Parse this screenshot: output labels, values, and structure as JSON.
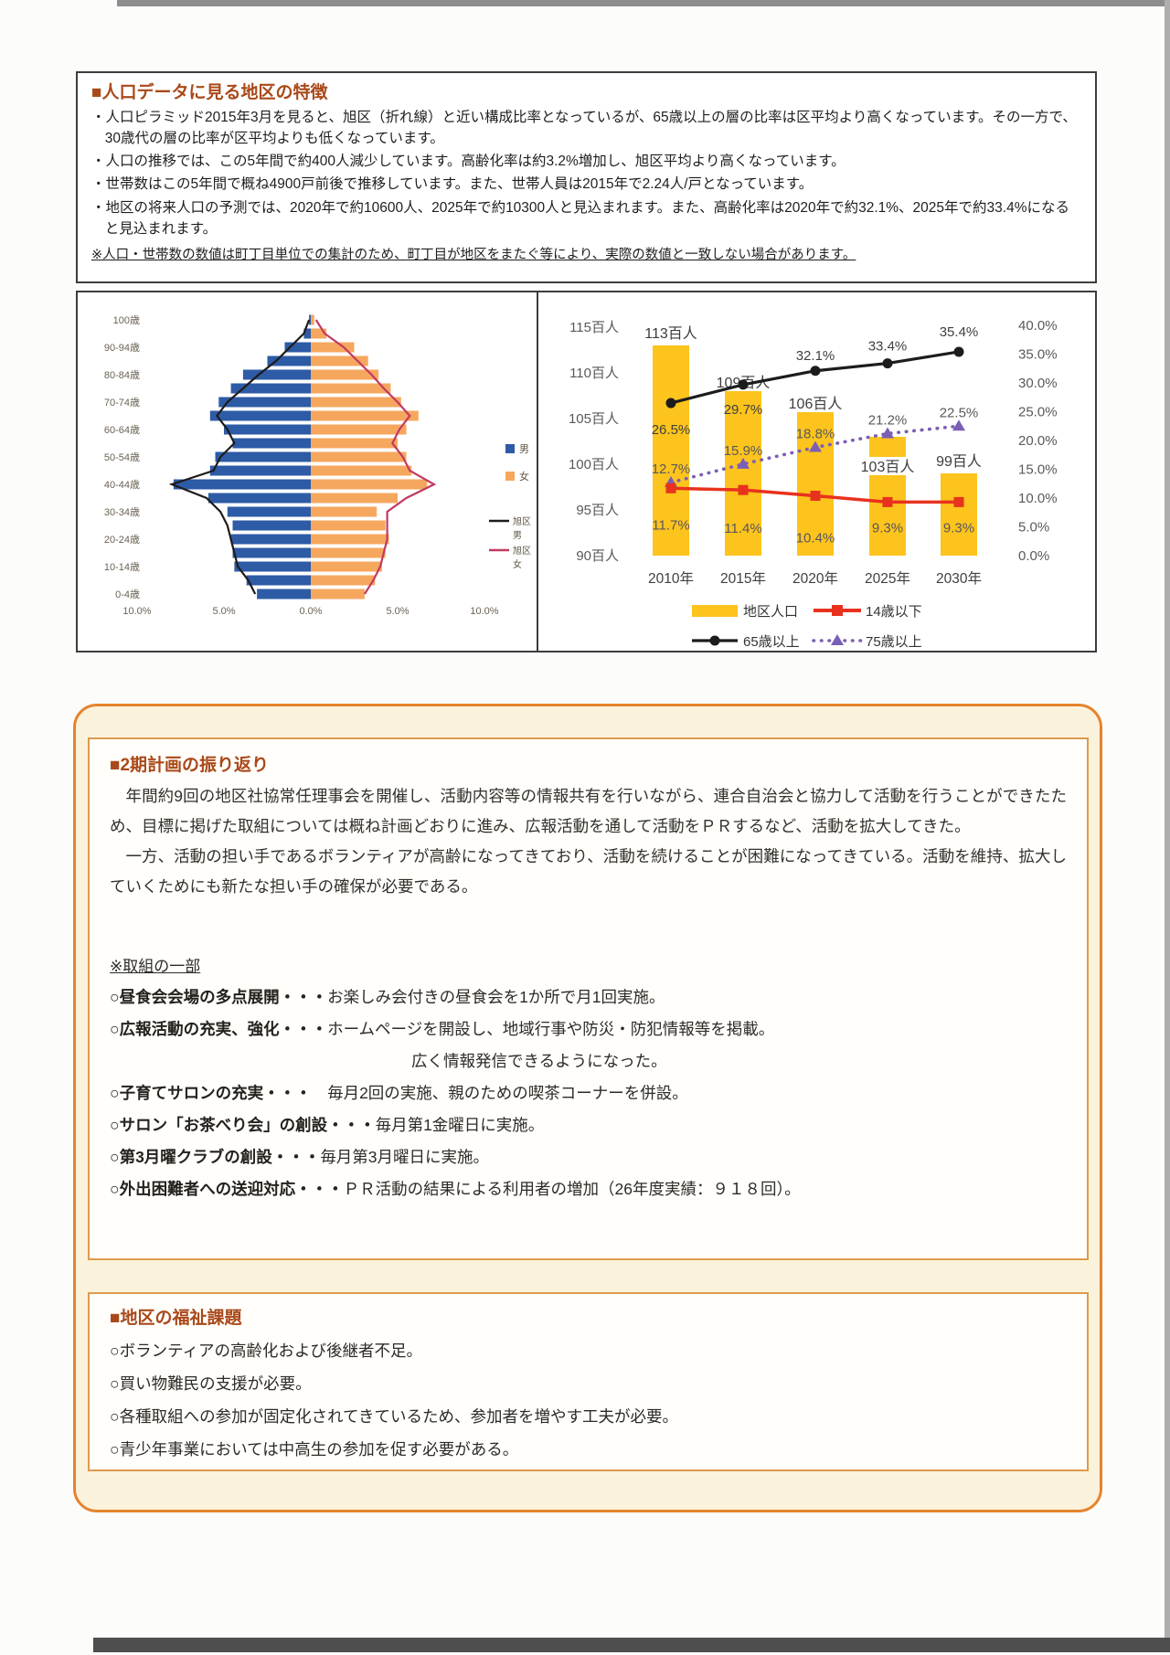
{
  "section1": {
    "title": "■人口データに見る地区の特徴",
    "bullets": [
      "・人口ピラミッド2015年3月を見ると、旭区（折れ線）と近い構成比率となっているが、65歳以上の層の比率は区平均より高くなっています。その一方で、30歳代の層の比率が区平均よりも低くなっています。",
      "・人口の推移では、この5年間で約400人減少しています。高齢化率は約3.2%増加し、旭区平均より高くなっています。",
      "・世帯数はこの5年間で概ね4900戸前後で推移しています。また、世帯人員は2015年で2.24人/戸となっています。",
      "・地区の将来人口の予測では、2020年で約10600人、2025年で約10300人と見込まれます。また、高齢化率は2020年で約32.1%、2025年で約33.4%になると見込まれます。"
    ],
    "note": "※人口・世帯数の数値は町丁目単位での集計のため、町丁目が地区をまたぐ等により、実際の数値と一致しない場合があります。"
  },
  "chart_data": [
    {
      "id": "population_pyramid",
      "type": "bar",
      "subtype": "population-pyramid",
      "unit": "% (構成比・目測値)",
      "age_groups": [
        "100歳~",
        "95-99歳",
        "90-94歳",
        "85-89歳",
        "80-84歳",
        "75-79歳",
        "70-74歳",
        "65-69歳",
        "60-64歳",
        "55-59歳",
        "50-54歳",
        "45-49歳",
        "40-44歳",
        "35-39歳",
        "30-34歳",
        "25-29歳",
        "20-24歳",
        "15-19歳",
        "10-14歳",
        "5-9歳",
        "0-4歳"
      ],
      "axis_labels_shown": [
        "100歳",
        "90-94歳",
        "80-84歳",
        "70-74歳",
        "60-64歳",
        "50-54歳",
        "40-44歳",
        "30-34歳",
        "20-24歳",
        "10-14歳",
        "0-4歳"
      ],
      "x_ticks": [
        "10.0%",
        "5.0%",
        "0.0%",
        "5.0%",
        "10.0%"
      ],
      "x_max_percent": 10,
      "series": [
        {
          "name": "男",
          "type": "bar",
          "side": "left",
          "color": "#2d5ba6",
          "values": [
            0.1,
            0.4,
            1.5,
            2.5,
            3.9,
            4.6,
            5.3,
            5.8,
            5.0,
            4.5,
            5.5,
            5.8,
            7.9,
            5.9,
            4.8,
            4.5,
            4.6,
            4.5,
            4.4,
            3.7,
            3.1
          ]
        },
        {
          "name": "女",
          "type": "bar",
          "side": "right",
          "color": "#f6a75e",
          "values": [
            0.2,
            0.9,
            2.5,
            3.3,
            3.9,
            4.6,
            5.2,
            6.2,
            5.5,
            5.0,
            5.5,
            5.8,
            6.7,
            5.0,
            3.8,
            4.3,
            4.5,
            4.3,
            4.1,
            3.7,
            3.1
          ]
        },
        {
          "name": "旭区男",
          "type": "line",
          "side": "left",
          "color": "#1f1b1a",
          "values": [
            0.1,
            0.4,
            1.2,
            2.0,
            3.0,
            3.9,
            4.8,
            5.4,
            4.8,
            4.4,
            5.2,
            5.6,
            8.0,
            6.0,
            5.2,
            4.8,
            4.6,
            4.4,
            4.2,
            3.6,
            3.2
          ]
        },
        {
          "name": "旭区女",
          "type": "line",
          "side": "right",
          "color": "#c23a60",
          "values": [
            0.3,
            0.8,
            1.9,
            2.7,
            3.5,
            4.2,
            5.0,
            5.7,
            5.1,
            4.7,
            5.3,
            5.7,
            7.1,
            5.5,
            4.4,
            4.4,
            4.4,
            4.2,
            4.0,
            3.6,
            3.1
          ]
        }
      ],
      "legend": [
        {
          "swatch": "square",
          "color": "#2d5ba6",
          "label": "男"
        },
        {
          "swatch": "square",
          "color": "#f6a75e",
          "label": "女"
        },
        {
          "swatch": "line",
          "color": "#1f1b1a",
          "label": "旭区",
          "label2": "男"
        },
        {
          "swatch": "line",
          "color": "#c23a60",
          "label": "旭区",
          "label2": "女"
        }
      ]
    },
    {
      "id": "population_trend",
      "type": "bar",
      "subtype": "bar+line-combo",
      "categories": [
        "2010年",
        "2015年",
        "2020年",
        "2025年",
        "2030年"
      ],
      "bar_series": {
        "name": "地区人口",
        "unit": "百人",
        "color": "#fcc41c",
        "values": [
          113,
          109,
          106,
          103,
          99
        ],
        "labels": [
          "113百人",
          "109百人",
          "106百人",
          "103百人",
          "99百人"
        ]
      },
      "line_series": [
        {
          "name": "14歳以下",
          "color": "#e8321e",
          "marker": "square",
          "dashed": false,
          "values": [
            11.7,
            11.4,
            10.4,
            9.3,
            9.3
          ]
        },
        {
          "name": "65歳以上",
          "color": "#1c1c1c",
          "marker": "circle",
          "dashed": false,
          "values": [
            26.5,
            29.7,
            32.1,
            33.4,
            35.4
          ]
        },
        {
          "name": "75歳以上",
          "color": "#7a5fb5",
          "marker": "triangle",
          "dashed": true,
          "values": [
            12.7,
            15.9,
            18.8,
            21.2,
            22.5
          ]
        }
      ],
      "y_left": {
        "min": 90,
        "max": 115,
        "labels": [
          "115百人",
          "110百人",
          "105百人",
          "100百人",
          "95百人",
          "90百人"
        ]
      },
      "y_right": {
        "min": 0,
        "max": 40,
        "labels": [
          "40.0%",
          "35.0%",
          "30.0%",
          "25.0%",
          "20.0%",
          "15.0%",
          "10.0%",
          "5.0%",
          "0.0%"
        ]
      },
      "legend": [
        "地区人口",
        "14歳以下",
        "65歳以上",
        "75歳以上"
      ]
    }
  ],
  "section2": {
    "title": "■2期計画の振り返り",
    "paragraphs": [
      "年間約9回の地区社協常任理事会を開催し、活動内容等の情報共有を行いながら、連合自治会と協力して活動を行うことができたため、目標に掲げた取組については概ね計画どおりに進み、広報活動を通して活動をＰＲするなど、活動を拡大してきた。",
      "一方、活動の担い手であるボランティアが高齢になってきており、活動を続けることが困難になってきている。活動を維持、拡大していくためにも新たな担い手の確保が必要である。"
    ],
    "subheading": "※取組の一部",
    "items": [
      {
        "label": "○昼食会会場の多点展開",
        "dots": "・・・",
        "desc": "お楽しみ会付きの昼食会を1か所で月1回実施。"
      },
      {
        "label": "○広報活動の充実、強化",
        "dots": "・・・",
        "desc": "ホームページを開設し、地域行事や防災・防犯情報等を掲載。",
        "desc2": "広く情報発信できるようになった。"
      },
      {
        "label": "○子育てサロンの充実",
        "dots": "・・・　",
        "desc": "毎月2回の実施、親のための喫茶コーナーを併設。"
      },
      {
        "label": "○サロン「お茶べり会」の創設",
        "dots": "・・・",
        "desc": "毎月第1金曜日に実施。"
      },
      {
        "label": "○第3月曜クラブの創設",
        "dots": "・・・",
        "desc": "毎月第3月曜日に実施。"
      },
      {
        "label": "○外出困難者への送迎対応",
        "dots": "・・・",
        "desc": "ＰＲ活動の結果による利用者の増加（26年度実績：９１８回）。"
      }
    ]
  },
  "section3": {
    "title": "■地区の福祉課題",
    "items": [
      "○ボランティアの高齢化および後継者不足。",
      "○買い物難民の支援が必要。",
      "○各種取組への参加が固定化されてきているため、参加者を増やす工夫が必要。",
      "○青少年事業においては中高生の参加を促す必要がある。"
    ]
  }
}
